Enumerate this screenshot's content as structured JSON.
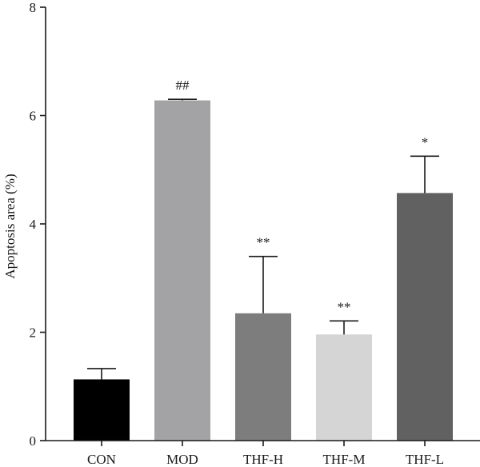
{
  "chart_data": {
    "type": "bar",
    "title": "",
    "xlabel": "",
    "ylabel": "Apoptosis area (%)",
    "ylim": [
      0,
      8
    ],
    "yticks": [
      0,
      2,
      4,
      6,
      8
    ],
    "grid": false,
    "categories": [
      "CON",
      "MOD",
      "THF-H",
      "THF-M",
      "THF-L"
    ],
    "values": [
      1.13,
      6.28,
      2.35,
      1.96,
      4.57
    ],
    "errors": [
      0.2,
      0.02,
      1.05,
      0.25,
      0.68
    ],
    "significance": [
      "",
      "##",
      "**",
      "**",
      "*"
    ],
    "colors": [
      "#000000",
      "#a3a3a5",
      "#7d7d7d",
      "#d5d5d5",
      "#616161"
    ]
  }
}
